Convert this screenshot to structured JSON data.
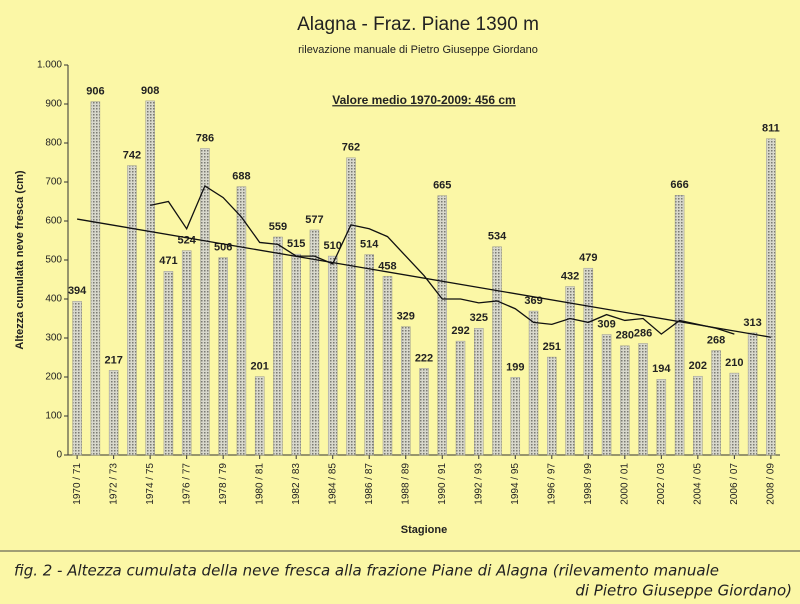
{
  "chart_data": {
    "type": "bar",
    "title": "Alagna - Fraz. Piane 1390 m",
    "subtitle": "rilevazione manuale di Pietro Giuseppe Giordano",
    "annotation": "Valore medio 1970-2009: 456 cm",
    "y_label": "Altezza cumulata neve fresca (cm)",
    "x_label": "Stagione",
    "caption": [
      "fig. 2 - Altezza cumulata della neve fresca alla frazione Piane di Alagna (rilevamento manuale",
      "di Pietro Giuseppe Giordano)"
    ],
    "categories": [
      "1970 / 71",
      null,
      "1972 / 73",
      null,
      "1974 / 75",
      null,
      "1976 / 77",
      null,
      "1978 / 79",
      null,
      "1980 / 81",
      null,
      "1982 / 83",
      null,
      "1984 / 85",
      null,
      "1986 / 87",
      null,
      "1988 / 89",
      null,
      "1990 / 91",
      null,
      "1992 / 93",
      null,
      "1994 / 95",
      null,
      "1996 / 97",
      null,
      "1998 / 99",
      null,
      "2000 / 01",
      null,
      "2002 / 03",
      null,
      "2004 / 05",
      null,
      "2006 / 07",
      null,
      "2008 / 09"
    ],
    "values": [
      394,
      906,
      217,
      742,
      908,
      471,
      524,
      786,
      506,
      688,
      201,
      559,
      515,
      577,
      510,
      762,
      514,
      458,
      329,
      222,
      665,
      292,
      325,
      534,
      199,
      369,
      251,
      432,
      479,
      309,
      280,
      286,
      194,
      666,
      202,
      268,
      210,
      313,
      811
    ],
    "color": "#9a9a90",
    "moving_average": [
      null,
      null,
      null,
      null,
      640,
      650,
      580,
      690,
      660,
      610,
      545,
      540,
      510,
      510,
      490,
      590,
      580,
      560,
      510,
      460,
      400,
      400,
      390,
      395,
      375,
      340,
      335,
      350,
      340,
      360,
      345,
      350,
      310,
      345,
      335,
      325,
      310,
      null,
      null
    ],
    "trend": [
      605,
      302
    ],
    "ylim": [
      0,
      1000
    ],
    "yticks": [
      0,
      100,
      200,
      300,
      400,
      500,
      600,
      700,
      800,
      900,
      {
        "value": 1000,
        "label": "1.000"
      }
    ],
    "grid": false
  }
}
